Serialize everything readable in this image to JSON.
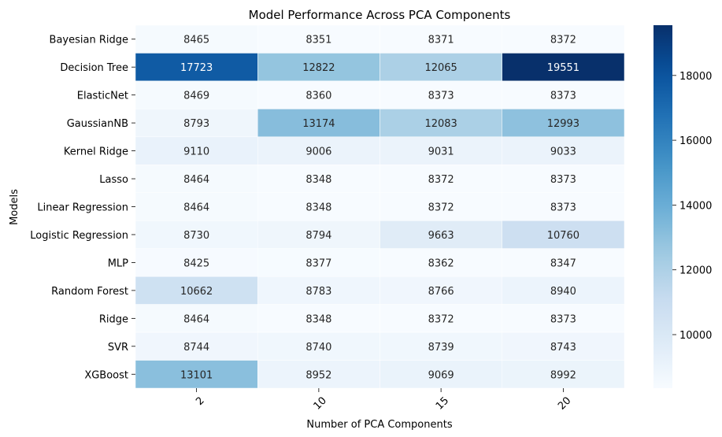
{
  "chart_data": {
    "type": "heatmap",
    "title": "Model Performance Across PCA Components",
    "xlabel": "Number of PCA Components",
    "ylabel": "Models",
    "x_categories": [
      "2",
      "10",
      "15",
      "20"
    ],
    "y_categories": [
      "Bayesian Ridge",
      "Decision Tree",
      "ElasticNet",
      "GaussianNB",
      "Kernel Ridge",
      "Lasso",
      "Linear Regression",
      "Logistic Regression",
      "MLP",
      "Random Forest",
      "Ridge",
      "SVR",
      "XGBoost"
    ],
    "values": [
      [
        8465,
        8351,
        8371,
        8372
      ],
      [
        17723,
        12822,
        12065,
        19551
      ],
      [
        8469,
        8360,
        8373,
        8373
      ],
      [
        8793,
        13174,
        12083,
        12993
      ],
      [
        9110,
        9006,
        9031,
        9033
      ],
      [
        8464,
        8348,
        8372,
        8373
      ],
      [
        8464,
        8348,
        8372,
        8373
      ],
      [
        8730,
        8794,
        9663,
        10760
      ],
      [
        8425,
        8377,
        8362,
        8347
      ],
      [
        10662,
        8783,
        8766,
        8940
      ],
      [
        8464,
        8348,
        8372,
        8373
      ],
      [
        8744,
        8740,
        8739,
        8743
      ],
      [
        13101,
        8952,
        9069,
        8992
      ]
    ],
    "colormap": "Blues",
    "vmin": 8347,
    "vmax": 19551,
    "colorbar_ticks": [
      10000,
      12000,
      14000,
      16000,
      18000
    ],
    "annotations": true,
    "x_tick_rotation_deg": 45
  }
}
